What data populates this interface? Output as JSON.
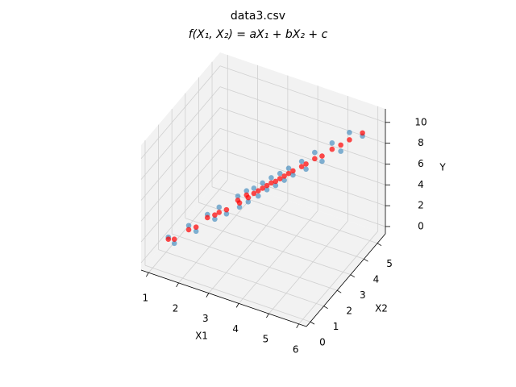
{
  "chart_data": {
    "type": "scatter3d",
    "title": "data3.csv",
    "subtitle": "f(X₁, X₂) = aX₁ + bX₂ + c",
    "x1_label": "X1",
    "x2_label": "X2",
    "y_label": "Y",
    "x1lim": [
      0.75,
      6.25
    ],
    "x2lim": [
      -0.3,
      5.6
    ],
    "ylim": [
      -0.7,
      11.3
    ],
    "x1ticks": [
      1,
      2,
      3,
      4,
      5,
      6
    ],
    "x2ticks": [
      0,
      1,
      2,
      3,
      4,
      5
    ],
    "yticks": [
      0,
      2,
      4,
      6,
      8,
      10
    ],
    "grid": true,
    "x1": [
      1.3,
      1.5,
      1.8,
      2.0,
      2.2,
      2.4,
      2.5,
      2.7,
      2.9,
      3.0,
      3.1,
      3.2,
      3.3,
      3.4,
      3.5,
      3.6,
      3.7,
      3.8,
      3.9,
      4.0,
      4.1,
      4.2,
      4.4,
      4.5,
      4.7,
      4.9,
      5.1,
      5.3,
      5.5,
      5.8
    ],
    "x2": [
      0.5,
      0.5,
      0.9,
      1.0,
      1.4,
      1.5,
      1.6,
      1.7,
      2.1,
      2.0,
      2.3,
      2.2,
      2.4,
      2.5,
      2.6,
      2.7,
      2.8,
      2.9,
      3.0,
      3.1,
      3.2,
      3.3,
      3.5,
      3.6,
      3.8,
      3.9,
      4.2,
      4.4,
      4.6,
      4.9
    ],
    "series": [
      {
        "color": "#1f77b4",
        "opacity": 0.55,
        "values": [
          1.8,
          1.4,
          2.8,
          2.3,
          3.5,
          3.1,
          4.2,
          3.6,
          4.9,
          4.1,
          5.3,
          4.5,
          5.6,
          4.8,
          6.0,
          5.3,
          6.4,
          5.6,
          6.7,
          6.0,
          7.1,
          6.4,
          7.6,
          6.8,
          8.3,
          7.5,
          9.0,
          8.1,
          9.8,
          9.3
        ]
      },
      {
        "color": "#ff0000",
        "opacity": 0.7,
        "values": [
          1.6,
          1.8,
          2.4,
          2.7,
          3.2,
          3.5,
          3.7,
          4.0,
          4.5,
          4.5,
          4.9,
          4.9,
          5.1,
          5.3,
          5.5,
          5.7,
          5.9,
          6.0,
          6.2,
          6.4,
          6.6,
          6.8,
          7.1,
          7.3,
          7.7,
          8.0,
          8.4,
          8.7,
          9.1,
          9.6
        ]
      }
    ]
  }
}
